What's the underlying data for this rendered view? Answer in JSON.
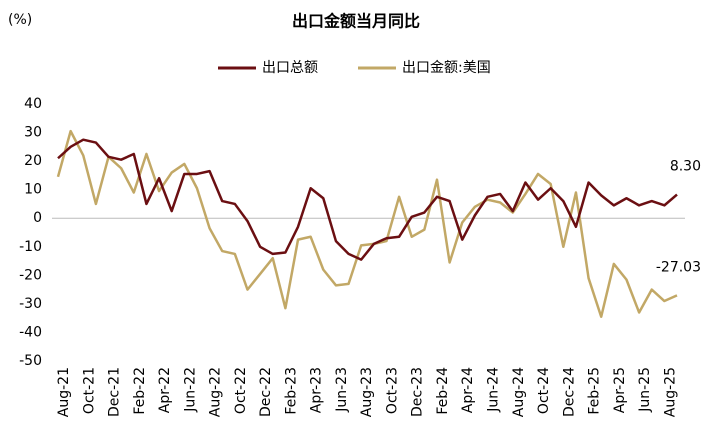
{
  "chart_data": {
    "type": "line",
    "title": "出口金额当月同比",
    "y_label": "(%)",
    "categories": [
      "Aug-21",
      null,
      "Oct-21",
      null,
      "Dec-21",
      null,
      "Feb-22",
      null,
      "Apr-22",
      null,
      "Jun-22",
      null,
      "Aug-22",
      null,
      "Oct-22",
      null,
      "Dec-22",
      null,
      "Feb-23",
      null,
      "Apr-23",
      null,
      "Jun-23",
      null,
      "Aug-23",
      null,
      "Oct-23",
      null,
      "Dec-23",
      null,
      "Feb-24",
      null,
      "Apr-24",
      null,
      "Jun-24",
      null,
      "Aug-24",
      null,
      "Oct-24",
      null,
      "Dec-24",
      null,
      "Feb-25",
      null,
      "Apr-25",
      null,
      "Jun-25",
      null,
      "Aug-25",
      null
    ],
    "series": [
      {
        "name": "出口总额",
        "color": "#6b0f12",
        "values": [
          21,
          25,
          27.5,
          26.5,
          21.5,
          20.5,
          22.5,
          5,
          14,
          2.5,
          15.5,
          15.5,
          16.5,
          6,
          5,
          -1,
          -10,
          -12.5,
          -12,
          -3,
          10.5,
          7,
          -8,
          -12.5,
          -14.5,
          -9,
          -7,
          -6.5,
          0.5,
          2,
          7.5,
          6,
          -7.5,
          1,
          7.5,
          8.5,
          2.5,
          12.5,
          6.5,
          10.5,
          6,
          -3,
          12.5,
          8,
          4.5,
          7,
          4.5,
          6,
          4.5,
          8.3
        ],
        "value_labels": [
          null,
          null,
          null,
          null,
          null,
          null,
          null,
          null,
          null,
          null,
          null,
          null,
          null,
          null,
          null,
          null,
          null,
          null,
          null,
          null,
          null,
          null,
          null,
          null,
          null,
          null,
          null,
          null,
          null,
          null,
          null,
          null,
          null,
          null,
          null,
          null,
          null,
          null,
          null,
          null,
          null,
          null,
          null,
          null,
          null,
          null,
          null,
          null,
          null,
          "8.30"
        ]
      },
      {
        "name": "出口金额:美国",
        "color": "#c2a866",
        "values": [
          14.5,
          30.5,
          22,
          5,
          21.5,
          17.5,
          9,
          22.5,
          9.5,
          16,
          19,
          10.5,
          -3.5,
          -11.5,
          -12.5,
          -25,
          -19.5,
          -14,
          -31.5,
          -7.5,
          -6.5,
          -18,
          -23.5,
          -23,
          -9.5,
          -9,
          -8,
          7.5,
          -6.5,
          -4,
          13.5,
          -15.5,
          -1.5,
          4,
          6.5,
          5.5,
          2,
          8.5,
          15.5,
          12,
          -10,
          9,
          -21,
          -34.5,
          -16,
          -21.5,
          -33,
          -25,
          -29,
          -27.03
        ],
        "value_labels": [
          null,
          null,
          null,
          null,
          null,
          null,
          null,
          null,
          null,
          null,
          null,
          null,
          null,
          null,
          null,
          null,
          null,
          null,
          null,
          null,
          null,
          null,
          null,
          null,
          null,
          null,
          null,
          null,
          null,
          null,
          null,
          null,
          null,
          null,
          null,
          null,
          null,
          null,
          null,
          null,
          null,
          null,
          null,
          null,
          null,
          null,
          null,
          null,
          null,
          "-27.03"
        ]
      }
    ],
    "ylim": [
      -50,
      40
    ],
    "yticks": [
      -50,
      -40,
      -30,
      -20,
      -10,
      0,
      10,
      20,
      30,
      40
    ],
    "grid": false,
    "legend": "top"
  }
}
